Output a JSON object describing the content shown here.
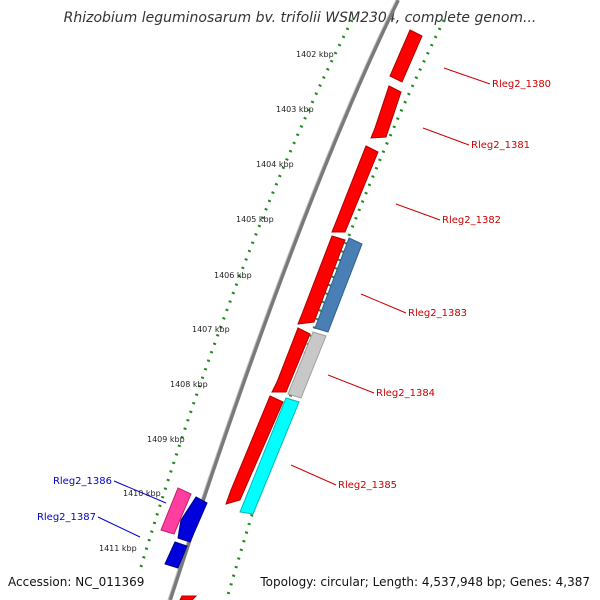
{
  "title": "Rhizobium leguminosarum bv. trifolii WSM2304, complete genom...",
  "footer": {
    "accession": "Accession: NC_011369",
    "topology": "Topology: circular; Length: 4,537,948 bp; Genes: 4,387"
  },
  "colors": {
    "backbone": "#8c8c8c",
    "tick_dots": "#1f8a1f",
    "forward_gene": "#ff0000",
    "reverse_gene_blue": "#4a7fb5",
    "reverse_gene_grey": "#c8c8c8",
    "reverse_gene_cyan": "#00ffff",
    "label_red": "#cc0000",
    "label_blue": "#0000cc",
    "gene_pink": "#ff3fa0",
    "gene_darkblue": "#0000dd"
  },
  "scale_ticks": [
    {
      "label": "1402 kbp"
    },
    {
      "label": "1403 kbp"
    },
    {
      "label": "1404 kbp"
    },
    {
      "label": "1405 kbp"
    },
    {
      "label": "1406 kbp"
    },
    {
      "label": "1407 kbp"
    },
    {
      "label": "1408 kbp"
    },
    {
      "label": "1409 kbp"
    },
    {
      "label": "1410 kbp"
    },
    {
      "label": "1411 kbp"
    }
  ],
  "genes": [
    {
      "name": "Rleg2_1380",
      "color": "red"
    },
    {
      "name": "Rleg2_1381",
      "color": "red"
    },
    {
      "name": "Rleg2_1382",
      "color": "red"
    },
    {
      "name": "Rleg2_1383",
      "color": "blue"
    },
    {
      "name": "Rleg2_1384",
      "color": "grey"
    },
    {
      "name": "Rleg2_1385",
      "color": "cyan"
    },
    {
      "name": "Rleg2_1386",
      "color": "pink"
    },
    {
      "name": "Rleg2_1387",
      "color": "darkblue"
    }
  ]
}
